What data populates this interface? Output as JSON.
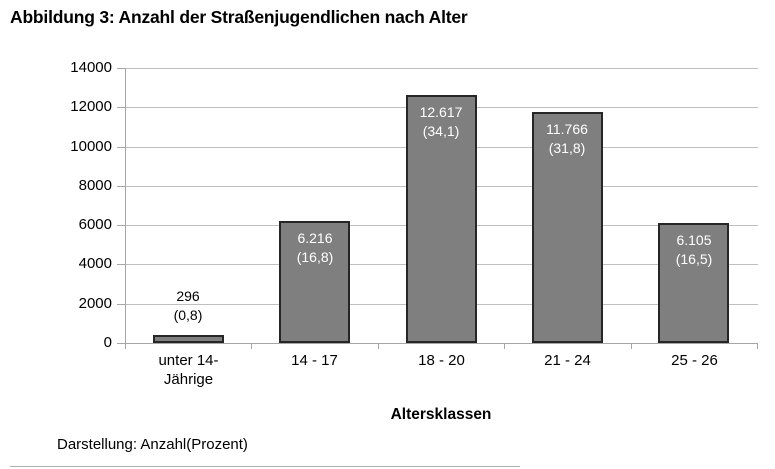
{
  "title": "Abbildung 3: Anzahl der Straßenjugendlichen nach Alter",
  "footer": "Darstellung: Anzahl(Prozent)",
  "chart_data": {
    "type": "bar",
    "title": "Abbildung 3: Anzahl der Straßenjugendlichen nach Alter",
    "xlabel": "Altersklassen",
    "ylabel": "",
    "ylim": [
      0,
      14000
    ],
    "grid": true,
    "yticks": [
      "0",
      "2000",
      "4000",
      "6000",
      "8000",
      "10000",
      "12000",
      "14000"
    ],
    "categories": [
      "unter 14-Jährige",
      "14 - 17",
      "18 - 20",
      "21 - 24",
      "25 - 26"
    ],
    "category_lines": [
      [
        "unter 14-",
        "Jährige"
      ],
      [
        "14 - 17"
      ],
      [
        "18 - 20"
      ],
      [
        "21 - 24"
      ],
      [
        "25 - 26"
      ]
    ],
    "values": [
      296,
      6216,
      12617,
      11766,
      6105
    ],
    "percents": [
      0.8,
      16.8,
      34.1,
      31.8,
      16.5
    ],
    "bar_labels": [
      {
        "value": "296",
        "percent": "(0,8)",
        "position": "outside"
      },
      {
        "value": "6.216",
        "percent": "(16,8)",
        "position": "inside"
      },
      {
        "value": "12.617",
        "percent": "(34,1)",
        "position": "inside"
      },
      {
        "value": "11.766",
        "percent": "(31,8)",
        "position": "inside"
      },
      {
        "value": "6.105",
        "percent": "(16,5)",
        "position": "inside"
      }
    ],
    "colors": {
      "bar_fill": "#7F7F7F",
      "bar_border": "#262626",
      "gridline": "#BFBFBF",
      "axis": "#A6A6A6",
      "label_inside": "#FFFFFF",
      "label_outside": "#000000"
    }
  }
}
